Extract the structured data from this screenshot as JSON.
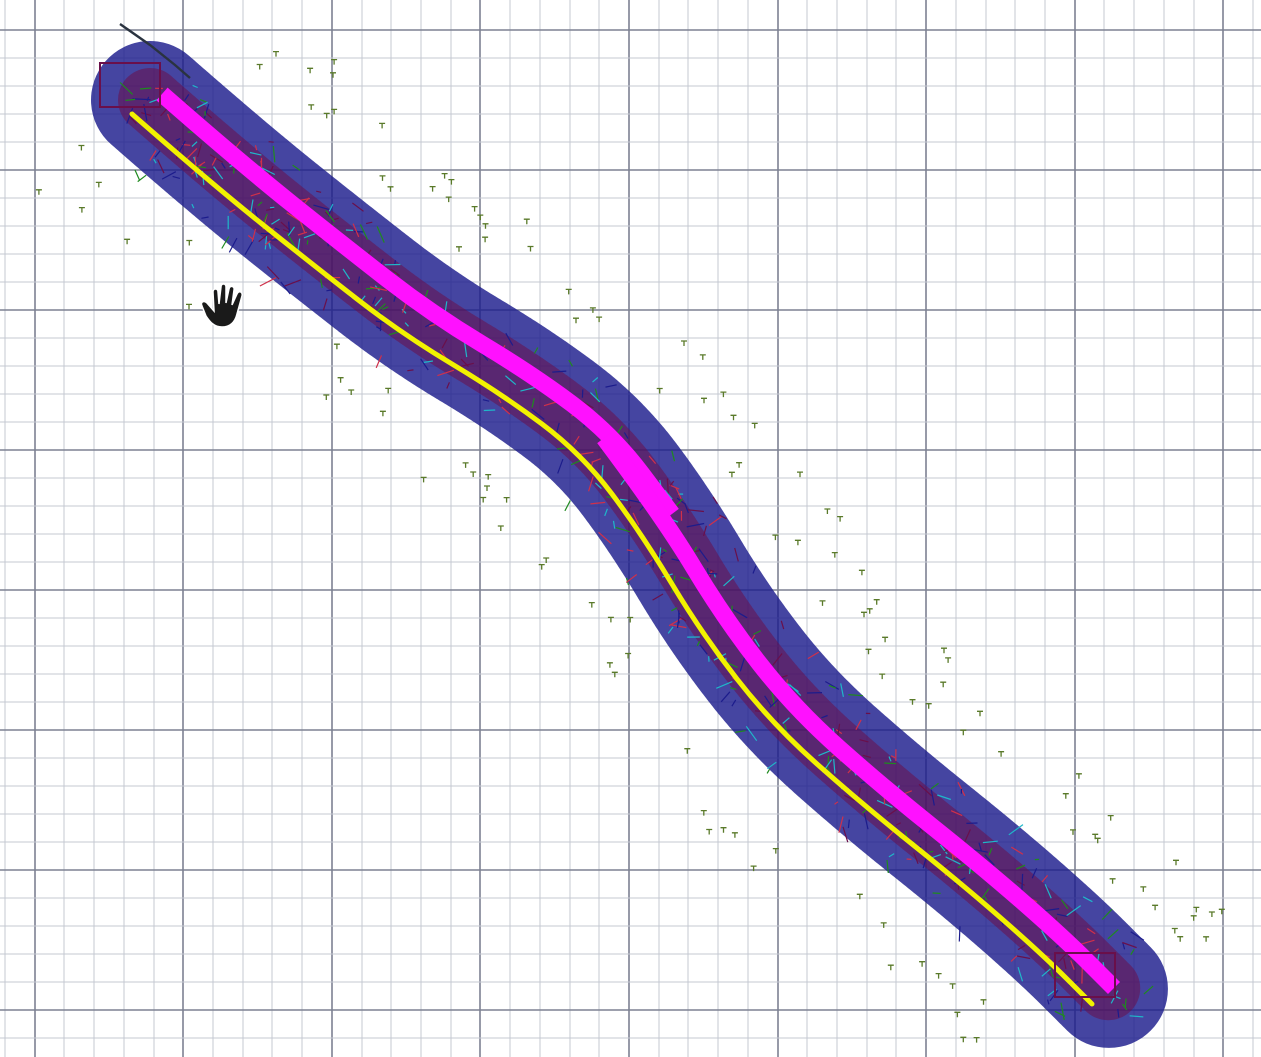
{
  "canvas": {
    "background": "#ffffff",
    "minor_grid_color": "#c4c8d2",
    "major_grid_color": "#7d8192"
  },
  "layers": {
    "outer_outline_color": "#1c1c8c",
    "inner_outline_color": "#6a0f4a",
    "roadway_band_color": "#ff11ff",
    "edge_line_color": "#f2f200",
    "detail_green": "#1f8a1f",
    "detail_cyan": "#1fb7c9",
    "detail_red": "#d0304a",
    "marker_color": "#5a7a2a"
  },
  "cursor": {
    "icon": "pan-hand-icon"
  }
}
